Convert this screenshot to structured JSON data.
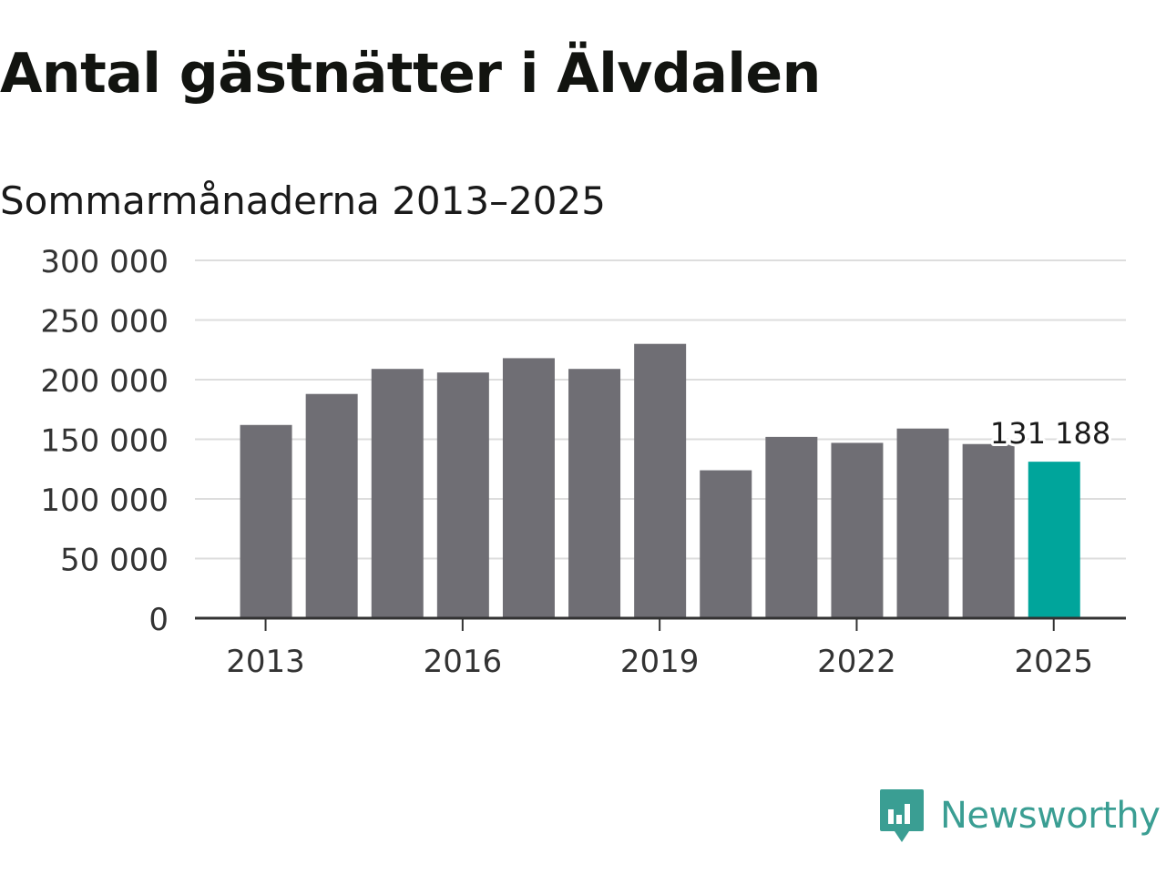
{
  "title": "Antal gästnätter i Älvdalen",
  "subtitle": "Sommarmånaderna 2013–2025",
  "brand": {
    "name": "Newsworthy",
    "icon": "newsworthy-logo-icon",
    "color": "#3a9e93"
  },
  "colors": {
    "bar": "#6f6e74",
    "highlight": "#00a59b",
    "grid": "#dddddd",
    "axis": "#333333"
  },
  "chart_data": {
    "type": "bar",
    "x": [
      2013,
      2014,
      2015,
      2016,
      2017,
      2018,
      2019,
      2020,
      2021,
      2022,
      2023,
      2024,
      2025
    ],
    "values": [
      162000,
      188000,
      209000,
      206000,
      218000,
      209000,
      230000,
      124000,
      152000,
      147000,
      159000,
      146000,
      131188
    ],
    "highlight_index": 12,
    "annotation": {
      "index": 12,
      "text": "131 188"
    },
    "xticks": [
      "2013",
      "2016",
      "2019",
      "2022",
      "2025"
    ],
    "yticks": [
      "0",
      "50 000",
      "100 000",
      "150 000",
      "200 000",
      "250 000",
      "300 000"
    ],
    "ylim": [
      0,
      300000
    ],
    "xlabel": "",
    "ylabel": "",
    "grid": true
  }
}
